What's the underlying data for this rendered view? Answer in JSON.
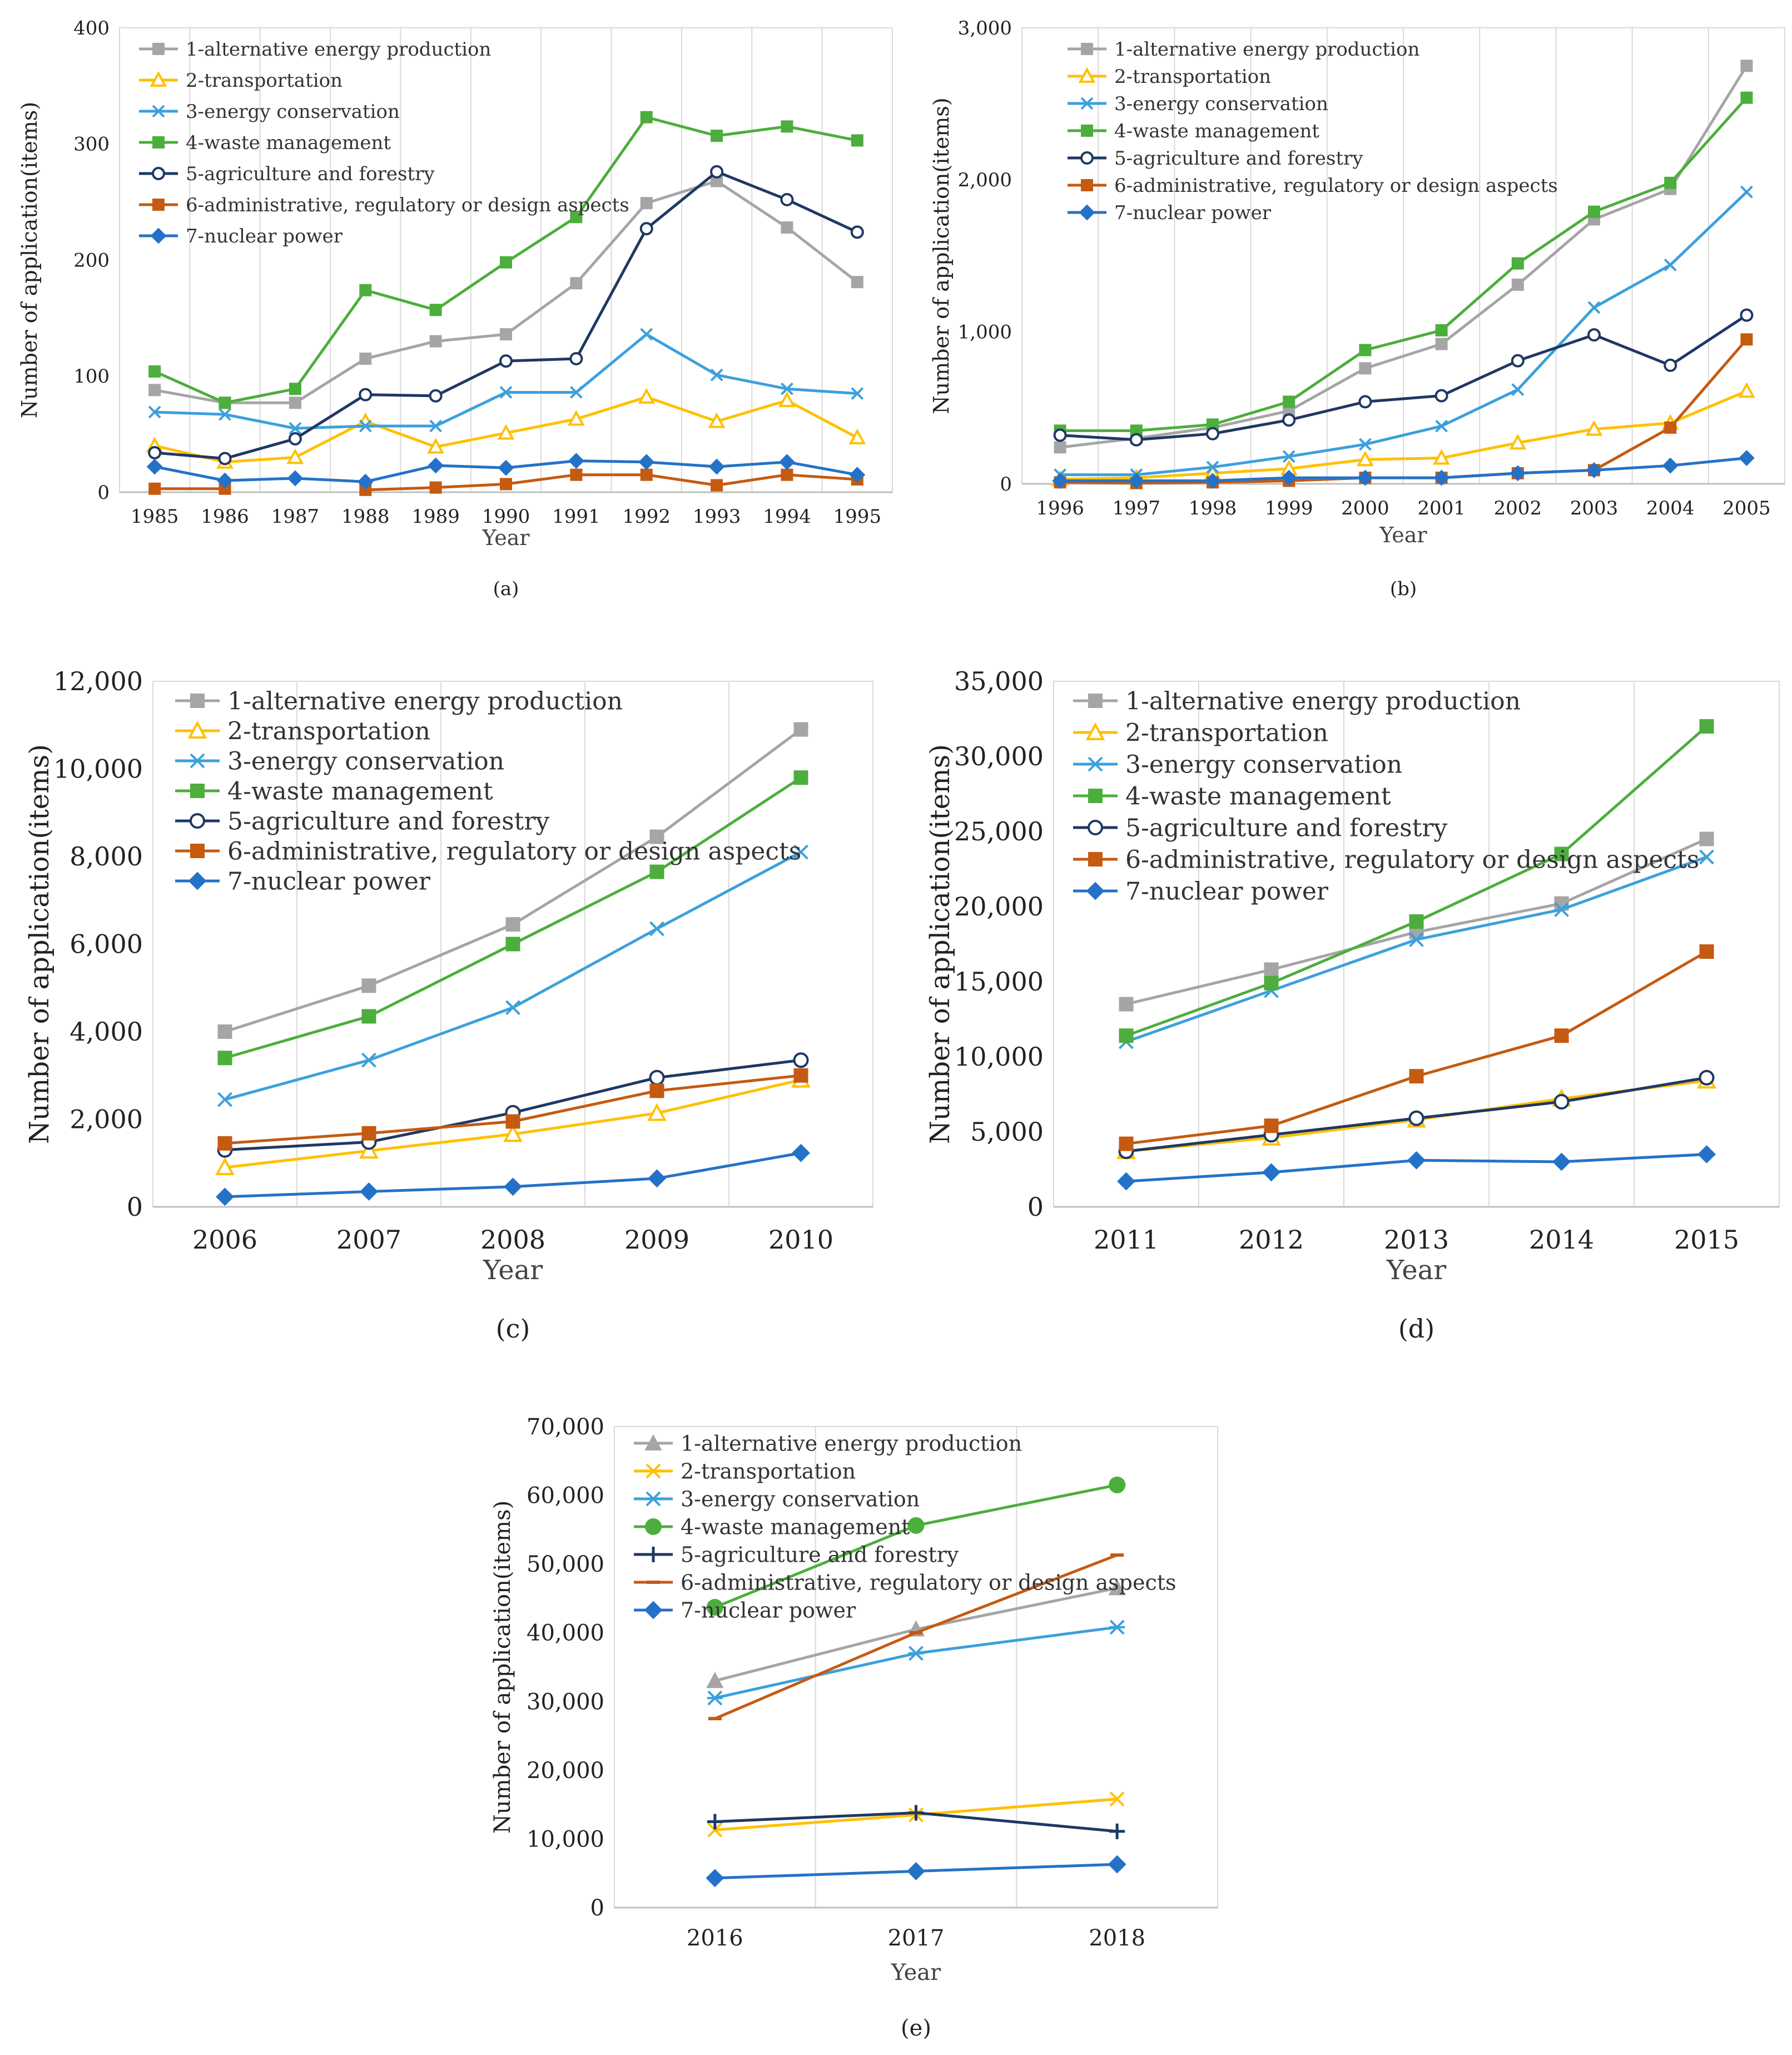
{
  "chart_data": [
    {
      "id": "a",
      "type": "line",
      "caption": "(a)",
      "xlabel": "Year",
      "ylabel": "Number of application(items)",
      "ylim": [
        0,
        400
      ],
      "yticks": [
        "0",
        "100",
        "200",
        "300",
        "400"
      ],
      "ytick_values": [
        0,
        100,
        200,
        300,
        400
      ],
      "categories": [
        "1985",
        "1986",
        "1987",
        "1988",
        "1989",
        "1990",
        "1991",
        "1992",
        "1993",
        "1994",
        "1995"
      ],
      "series": [
        {
          "name": "1-alternative energy production",
          "color": "#a5a5a5",
          "marker": "square",
          "values": [
            88,
            77,
            77,
            115,
            130,
            136,
            180,
            249,
            268,
            228,
            181
          ]
        },
        {
          "name": "2-transportation",
          "color": "#ffc000",
          "marker": "triangle-open",
          "values": [
            40,
            26,
            30,
            61,
            39,
            51,
            63,
            82,
            61,
            79,
            47
          ]
        },
        {
          "name": "3-energy conservation",
          "color": "#3ca0dc",
          "marker": "x",
          "values": [
            69,
            67,
            55,
            57,
            57,
            86,
            86,
            136,
            101,
            89,
            85
          ]
        },
        {
          "name": "4-waste management",
          "color": "#4cae3c",
          "marker": "square",
          "values": [
            104,
            77,
            89,
            174,
            157,
            198,
            237,
            323,
            307,
            315,
            303
          ]
        },
        {
          "name": "5-agriculture and forestry",
          "color": "#1f3864",
          "marker": "circle-open",
          "values": [
            34,
            29,
            46,
            84,
            83,
            113,
            115,
            227,
            276,
            252,
            224
          ]
        },
        {
          "name": "6-administrative, regulatory or design aspects",
          "color": "#c55a11",
          "marker": "square",
          "values": [
            3,
            3,
            null,
            2,
            4,
            7,
            15,
            15,
            6,
            15,
            11
          ]
        },
        {
          "name": "7-nuclear power",
          "color": "#2472c8",
          "marker": "diamond",
          "values": [
            22,
            10,
            12,
            9,
            23,
            21,
            27,
            26,
            22,
            26,
            15
          ]
        }
      ]
    },
    {
      "id": "b",
      "type": "line",
      "caption": "(b)",
      "xlabel": "Year",
      "ylabel": "Number of application(items)",
      "ylim": [
        0,
        3000
      ],
      "yticks": [
        "0",
        "1,000",
        "2,000",
        "3,000"
      ],
      "ytick_values": [
        0,
        1000,
        2000,
        3000
      ],
      "categories": [
        "1996",
        "1997",
        "1998",
        "1999",
        "2000",
        "2001",
        "2002",
        "2003",
        "2004",
        "2005"
      ],
      "series": [
        {
          "name": "1-alternative energy production",
          "color": "#a5a5a5",
          "marker": "square",
          "values": [
            240,
            300,
            370,
            480,
            760,
            920,
            1310,
            1740,
            1940,
            2750
          ]
        },
        {
          "name": "2-transportation",
          "color": "#ffc000",
          "marker": "triangle-open",
          "values": [
            30,
            40,
            70,
            100,
            160,
            170,
            270,
            360,
            400,
            610
          ]
        },
        {
          "name": "3-energy conservation",
          "color": "#3ca0dc",
          "marker": "x",
          "values": [
            60,
            60,
            110,
            180,
            260,
            380,
            620,
            1160,
            1440,
            1920
          ]
        },
        {
          "name": "4-waste management",
          "color": "#4cae3c",
          "marker": "square",
          "values": [
            350,
            350,
            390,
            540,
            880,
            1010,
            1450,
            1790,
            1980,
            2540
          ]
        },
        {
          "name": "5-agriculture and forestry",
          "color": "#1f3864",
          "marker": "circle-open",
          "values": [
            320,
            290,
            330,
            420,
            540,
            580,
            810,
            980,
            780,
            1110
          ]
        },
        {
          "name": "6-administrative, regulatory or design aspects",
          "color": "#c55a11",
          "marker": "square",
          "values": [
            10,
            5,
            10,
            20,
            40,
            40,
            70,
            90,
            370,
            950
          ]
        },
        {
          "name": "7-nuclear power",
          "color": "#2472c8",
          "marker": "diamond",
          "values": [
            20,
            20,
            20,
            40,
            40,
            40,
            70,
            90,
            120,
            170
          ]
        }
      ]
    },
    {
      "id": "c",
      "type": "line",
      "caption": "(c)",
      "xlabel": "Year",
      "ylabel": "Number of application(items)",
      "ylim": [
        0,
        12000
      ],
      "yticks": [
        "0",
        "2,000",
        "4,000",
        "6,000",
        "8,000",
        "10,000",
        "12,000"
      ],
      "ytick_values": [
        0,
        2000,
        4000,
        6000,
        8000,
        10000,
        12000
      ],
      "categories": [
        "2006",
        "2007",
        "2008",
        "2009",
        "2010"
      ],
      "series": [
        {
          "name": "1-alternative energy production",
          "color": "#a5a5a5",
          "marker": "square",
          "values": [
            4000,
            5050,
            6450,
            8450,
            10900
          ]
        },
        {
          "name": "2-transportation",
          "color": "#ffc000",
          "marker": "triangle-open",
          "values": [
            900,
            1280,
            1660,
            2140,
            2900
          ]
        },
        {
          "name": "3-energy conservation",
          "color": "#3ca0dc",
          "marker": "x",
          "values": [
            2450,
            3350,
            4550,
            6350,
            8100
          ]
        },
        {
          "name": "4-waste management",
          "color": "#4cae3c",
          "marker": "square",
          "values": [
            3400,
            4350,
            6000,
            7650,
            9800
          ]
        },
        {
          "name": "5-agriculture and forestry",
          "color": "#1f3864",
          "marker": "circle-open",
          "values": [
            1300,
            1480,
            2150,
            2950,
            3350
          ]
        },
        {
          "name": "6-administrative, regulatory or design aspects",
          "color": "#c55a11",
          "marker": "square",
          "values": [
            1450,
            1680,
            1950,
            2650,
            3000
          ]
        },
        {
          "name": "7-nuclear power",
          "color": "#2472c8",
          "marker": "diamond",
          "values": [
            230,
            350,
            460,
            650,
            1230
          ]
        }
      ]
    },
    {
      "id": "d",
      "type": "line",
      "caption": "(d)",
      "xlabel": "Year",
      "ylabel": "Number of application(items)",
      "ylim": [
        0,
        35000
      ],
      "yticks": [
        "0",
        "5,000",
        "10,000",
        "15,000",
        "20,000",
        "25,000",
        "30,000",
        "35,000"
      ],
      "ytick_values": [
        0,
        5000,
        10000,
        15000,
        20000,
        25000,
        30000,
        35000
      ],
      "categories": [
        "2011",
        "2012",
        "2013",
        "2014",
        "2015"
      ],
      "series": [
        {
          "name": "1-alternative energy production",
          "color": "#a5a5a5",
          "marker": "square",
          "values": [
            13500,
            15800,
            18300,
            20200,
            24500
          ]
        },
        {
          "name": "2-transportation",
          "color": "#ffc000",
          "marker": "triangle-open",
          "values": [
            3700,
            4600,
            5800,
            7200,
            8400
          ]
        },
        {
          "name": "3-energy conservation",
          "color": "#3ca0dc",
          "marker": "x",
          "values": [
            11000,
            14400,
            17800,
            19800,
            23300
          ]
        },
        {
          "name": "4-waste management",
          "color": "#4cae3c",
          "marker": "square",
          "values": [
            11400,
            14900,
            19000,
            23500,
            32000
          ]
        },
        {
          "name": "5-agriculture and forestry",
          "color": "#1f3864",
          "marker": "circle-open",
          "values": [
            3700,
            4800,
            5900,
            7000,
            8600
          ]
        },
        {
          "name": "6-administrative, regulatory or design aspects",
          "color": "#c55a11",
          "marker": "square",
          "values": [
            4200,
            5400,
            8700,
            11400,
            17000
          ]
        },
        {
          "name": "7-nuclear power",
          "color": "#2472c8",
          "marker": "diamond",
          "values": [
            1700,
            2300,
            3100,
            3000,
            3500
          ]
        }
      ]
    },
    {
      "id": "e",
      "type": "line",
      "caption": "(e)",
      "xlabel": "Year",
      "ylabel": "Number of application(items)",
      "ylim": [
        0,
        70000
      ],
      "yticks": [
        "0",
        "10,000",
        "20,000",
        "30,000",
        "40,000",
        "50,000",
        "60,000",
        "70,000"
      ],
      "ytick_values": [
        0,
        10000,
        20000,
        30000,
        40000,
        50000,
        60000,
        70000
      ],
      "categories": [
        "2016",
        "2017",
        "2018"
      ],
      "series": [
        {
          "name": "1-alternative energy production",
          "color": "#a5a5a5",
          "marker": "triangle",
          "values": [
            33000,
            40500,
            46500
          ]
        },
        {
          "name": "2-transportation",
          "color": "#ffc000",
          "marker": "x",
          "values": [
            11300,
            13500,
            15800
          ]
        },
        {
          "name": "3-energy conservation",
          "color": "#3ca0dc",
          "marker": "asterisk",
          "values": [
            30500,
            37000,
            40800
          ]
        },
        {
          "name": "4-waste management",
          "color": "#4cae3c",
          "marker": "circle",
          "values": [
            43700,
            55600,
            61500
          ]
        },
        {
          "name": "5-agriculture and forestry",
          "color": "#1f3864",
          "marker": "plus",
          "values": [
            12500,
            13800,
            11100
          ]
        },
        {
          "name": "6-administrative, regulatory or design aspects",
          "color": "#c55a11",
          "marker": "dash",
          "values": [
            27500,
            40000,
            51300
          ]
        },
        {
          "name": "7-nuclear power",
          "color": "#2472c8",
          "marker": "diamond",
          "values": [
            4300,
            5300,
            6300
          ]
        }
      ]
    }
  ]
}
